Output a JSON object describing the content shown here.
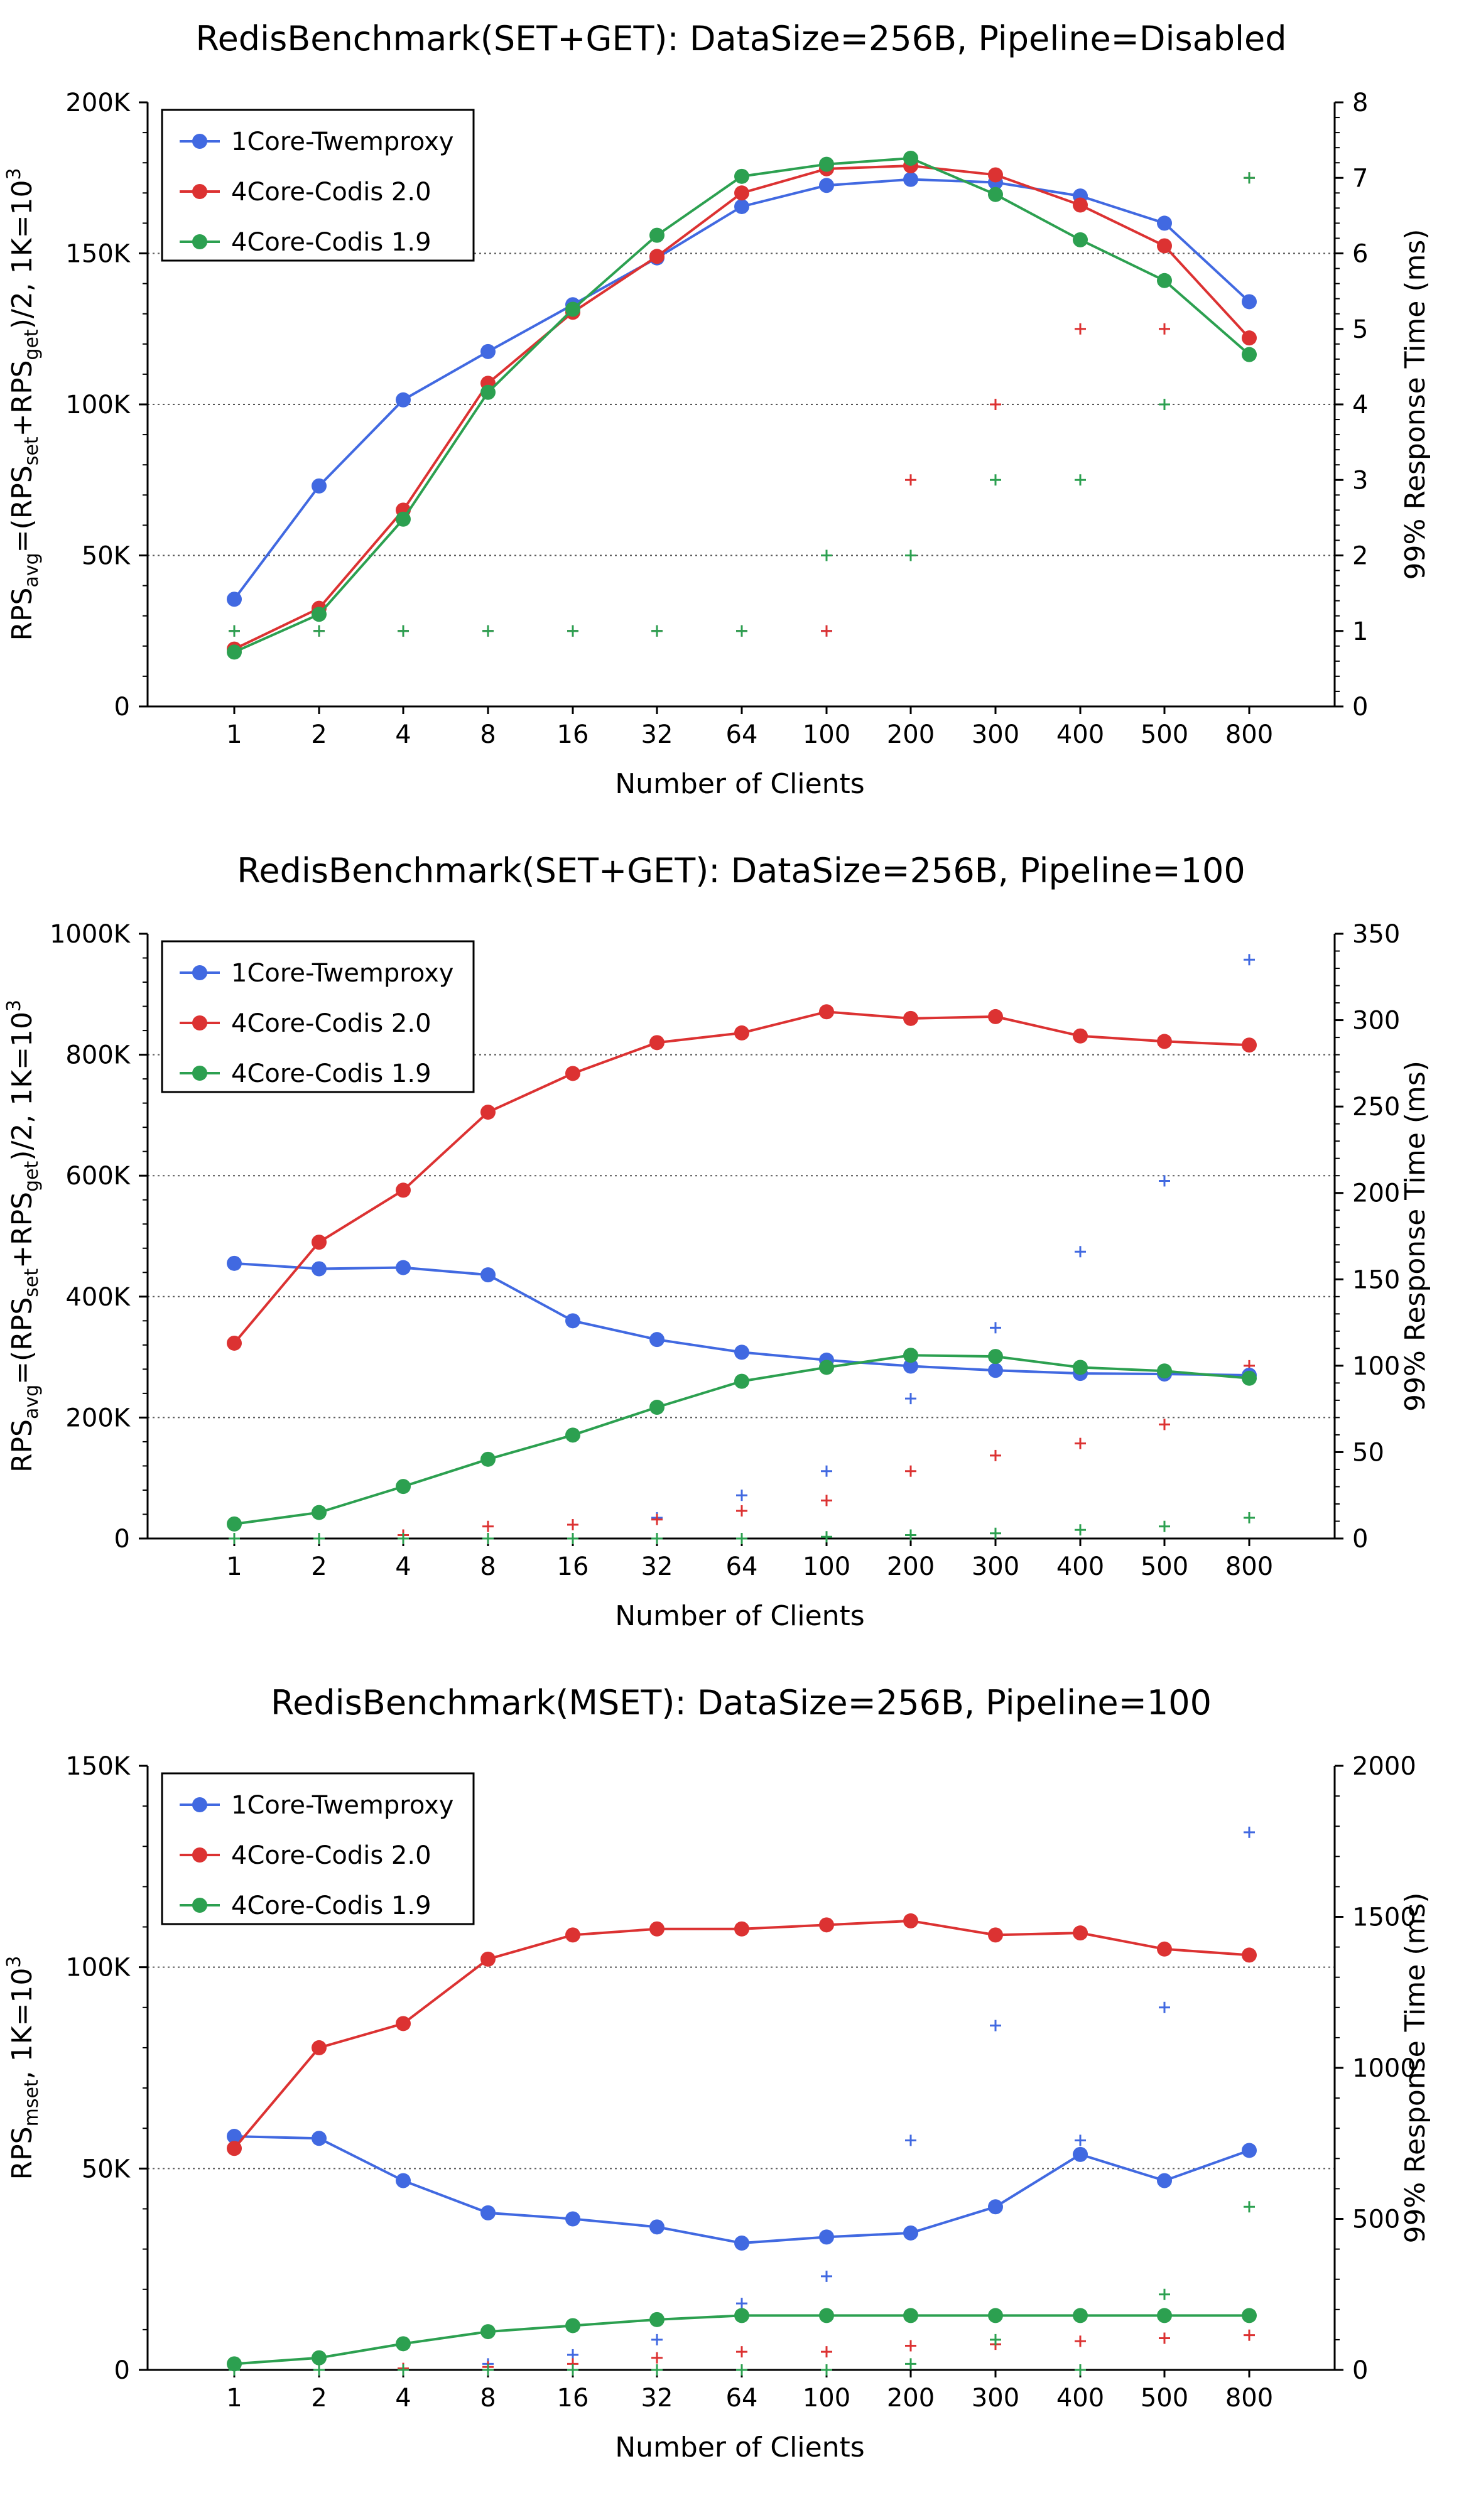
{
  "chart_data": [
    {
      "type": "line",
      "title": "RedisBenchmark(SET+GET): DataSize=256B, Pipeline=Disabled",
      "xlabel": "Number of Clients",
      "ylabel": {
        "base": "RPS",
        "sub": "avg",
        "mid": "=(RPS",
        "sub2": "set",
        "mid2": "+RPS",
        "sub3": "get",
        "tail": ")/2, 1K=10",
        "sup": "3"
      },
      "y2label": "99% Response Time (ms)",
      "categories": [
        "1",
        "2",
        "4",
        "8",
        "16",
        "32",
        "64",
        "100",
        "200",
        "300",
        "400",
        "500",
        "800"
      ],
      "ylim": [
        0,
        200000
      ],
      "yticks": [
        0,
        50000,
        100000,
        150000,
        200000
      ],
      "ytick_labels": [
        "0",
        "50K",
        "100K",
        "150K",
        "200K"
      ],
      "y2lim": [
        0,
        8
      ],
      "y2ticks": [
        0,
        1,
        2,
        3,
        4,
        5,
        6,
        7,
        8
      ],
      "y2tick_labels": [
        "0",
        "1",
        "2",
        "3",
        "4",
        "5",
        "6",
        "7",
        "8"
      ],
      "grid": "horizontal-dotted",
      "legend_position": "top-left",
      "series": [
        {
          "name": "1Core-Twemproxy",
          "color": "#4169e1",
          "values": [
            35500,
            73000,
            101500,
            117500,
            133000,
            148500,
            165500,
            172500,
            174500,
            173500,
            169000,
            160000,
            134000
          ],
          "latency": [
            1,
            1,
            1,
            1,
            1,
            1,
            1,
            1,
            null,
            null,
            null,
            null,
            null
          ]
        },
        {
          "name": "4Core-Codis 2.0",
          "color": "#dc3232",
          "values": [
            19000,
            32500,
            65000,
            107000,
            130500,
            149000,
            170000,
            178000,
            179000,
            176000,
            166000,
            152500,
            122000
          ],
          "latency": [
            1,
            1,
            1,
            1,
            1,
            1,
            1,
            1,
            3,
            4,
            5,
            5,
            7
          ]
        },
        {
          "name": "4Core-Codis 1.9",
          "color": "#2ca050",
          "values": [
            18000,
            30500,
            62000,
            104000,
            131500,
            156000,
            175500,
            179500,
            181500,
            169500,
            154500,
            141000,
            116500
          ],
          "latency": [
            1,
            1,
            1,
            1,
            1,
            1,
            1,
            2,
            2,
            3,
            3,
            4,
            7
          ]
        }
      ]
    },
    {
      "type": "line",
      "title": "RedisBenchmark(SET+GET): DataSize=256B, Pipeline=100",
      "xlabel": "Number of Clients",
      "ylabel": {
        "base": "RPS",
        "sub": "avg",
        "mid": "=(RPS",
        "sub2": "set",
        "mid2": "+RPS",
        "sub3": "get",
        "tail": ")/2, 1K=10",
        "sup": "3"
      },
      "y2label": "99% Response Time (ms)",
      "categories": [
        "1",
        "2",
        "4",
        "8",
        "16",
        "32",
        "64",
        "100",
        "200",
        "300",
        "400",
        "500",
        "800"
      ],
      "ylim": [
        0,
        1000000
      ],
      "yticks": [
        0,
        200000,
        400000,
        600000,
        800000,
        1000000
      ],
      "ytick_labels": [
        "0",
        "200K",
        "400K",
        "600K",
        "800K",
        "1000K"
      ],
      "y2lim": [
        0,
        350
      ],
      "y2ticks": [
        0,
        50,
        100,
        150,
        200,
        250,
        300,
        350
      ],
      "y2tick_labels": [
        "0",
        "50",
        "100",
        "150",
        "200",
        "250",
        "300",
        "350"
      ],
      "grid": "horizontal-dotted",
      "legend_position": "top-left",
      "series": [
        {
          "name": "1Core-Twemproxy",
          "color": "#4169e1",
          "values": [
            455000,
            446000,
            448000,
            436000,
            360000,
            329000,
            308000,
            295000,
            285000,
            278000,
            273000,
            272000,
            270000
          ],
          "latency": [
            0,
            0,
            0,
            0,
            0,
            12,
            25,
            39,
            81,
            122,
            166,
            207,
            335
          ]
        },
        {
          "name": "4Core-Codis 2.0",
          "color": "#dc3232",
          "values": [
            323000,
            490000,
            576000,
            705000,
            769000,
            820000,
            836000,
            871000,
            860000,
            863000,
            831000,
            822000,
            816000
          ],
          "latency": [
            0,
            0,
            2,
            7,
            8,
            11,
            16,
            22,
            39,
            48,
            55,
            66,
            100
          ]
        },
        {
          "name": "4Core-Codis 1.9",
          "color": "#2ca050",
          "values": [
            24000,
            43000,
            86000,
            131000,
            171000,
            217000,
            260000,
            283000,
            303000,
            301000,
            283000,
            277000,
            265000
          ],
          "latency": [
            0,
            0,
            0,
            0,
            0,
            0,
            0,
            1,
            2,
            3,
            5,
            7,
            12
          ]
        }
      ]
    },
    {
      "type": "line",
      "title": "RedisBenchmark(MSET): DataSize=256B, Pipeline=100",
      "xlabel": "Number of Clients",
      "ylabel": {
        "base": "RPS",
        "sub": "mset",
        "tail": ", 1K=10",
        "sup": "3"
      },
      "y2label": "99% Response Time (ms)",
      "categories": [
        "1",
        "2",
        "4",
        "8",
        "16",
        "32",
        "64",
        "100",
        "200",
        "300",
        "400",
        "500",
        "800"
      ],
      "ylim": [
        0,
        150000
      ],
      "yticks": [
        0,
        50000,
        100000,
        150000
      ],
      "ytick_labels": [
        "0",
        "50K",
        "100K",
        "150K"
      ],
      "y2lim": [
        0,
        2000
      ],
      "y2ticks": [
        0,
        500,
        1000,
        1500,
        2000
      ],
      "y2tick_labels": [
        "0",
        "500",
        "1000",
        "1500",
        "2000"
      ],
      "grid": "horizontal-dotted",
      "legend_position": "top-left",
      "series": [
        {
          "name": "1Core-Twemproxy",
          "color": "#4169e1",
          "values": [
            58000,
            57500,
            47000,
            39000,
            37500,
            35500,
            31500,
            33000,
            34000,
            40500,
            53500,
            47000,
            54500
          ],
          "latency": [
            0,
            0,
            0,
            20,
            50,
            100,
            220,
            310,
            760,
            1140,
            760,
            1200,
            1780
          ]
        },
        {
          "name": "4Core-Codis 2.0",
          "color": "#dc3232",
          "values": [
            55000,
            80000,
            86000,
            102000,
            108000,
            109500,
            109500,
            110500,
            111500,
            108000,
            108500,
            104500,
            103000
          ],
          "latency": [
            0,
            0,
            5,
            10,
            20,
            40,
            60,
            60,
            80,
            85,
            95,
            105,
            115
          ]
        },
        {
          "name": "4Core-Codis 1.9",
          "color": "#2ca050",
          "values": [
            1500,
            3000,
            6500,
            9500,
            11000,
            12500,
            13500,
            13500,
            13500,
            13500,
            13500,
            13500,
            13500
          ],
          "latency": [
            0,
            0,
            0,
            0,
            0,
            0,
            0,
            0,
            20,
            100,
            0,
            250,
            540
          ]
        }
      ]
    }
  ]
}
